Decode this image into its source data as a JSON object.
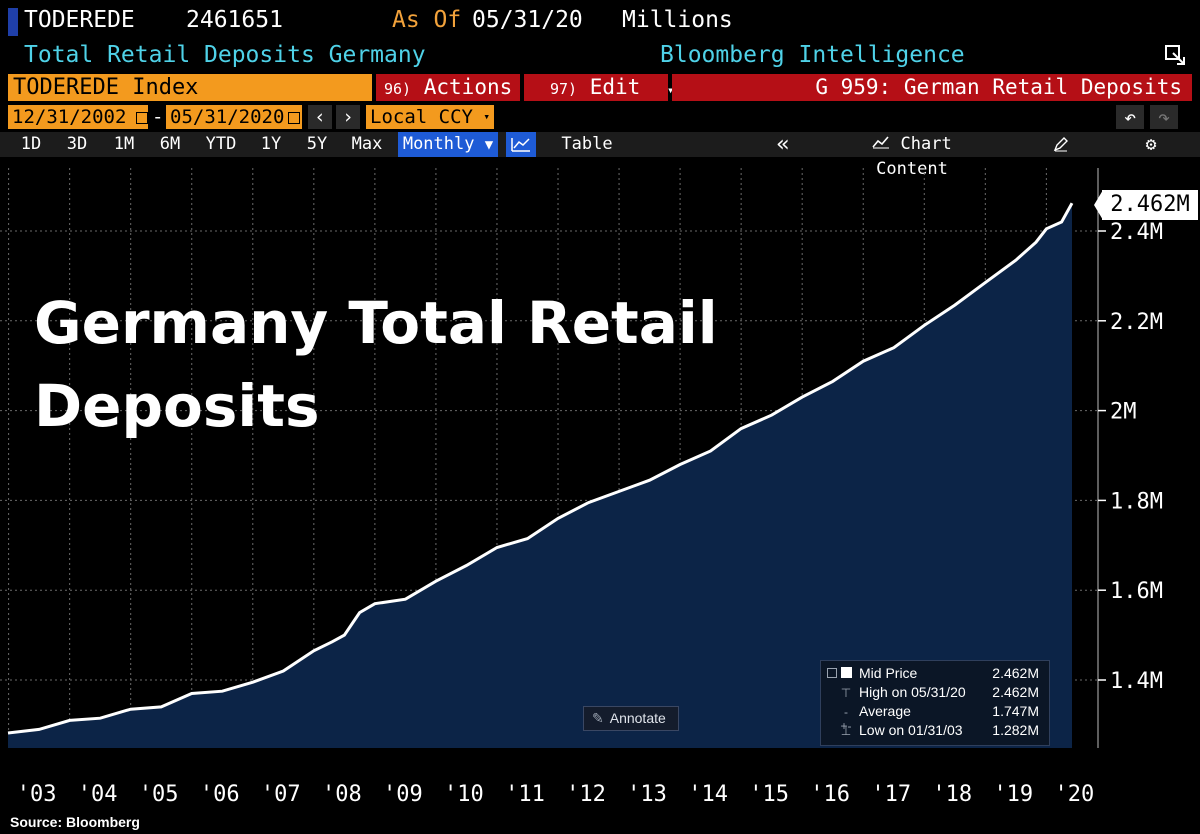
{
  "header": {
    "ticker": "TODEREDE",
    "last_value": "2461651",
    "as_of_label": "As Of",
    "as_of_date": "05/31/20",
    "units": "Millions",
    "description": "Total Retail Deposits Germany",
    "source_desk": "Bloomberg Intelligence"
  },
  "command_bar": {
    "security": "TODEREDE Index",
    "actions_num": "96)",
    "actions_label": "Actions",
    "edit_num": "97)",
    "edit_label": "Edit",
    "page_title": "G 959: German Retail Deposits"
  },
  "range_bar": {
    "start_date": "12/31/2002",
    "separator": "-",
    "end_date": "05/31/2020",
    "prev_icon": "‹",
    "next_icon": "›",
    "currency": "Local CCY",
    "undo_icon": "↶",
    "redo_icon": "↷"
  },
  "toolbar": {
    "periods": [
      "1D",
      "3D",
      "1M",
      "6M",
      "YTD",
      "1Y",
      "5Y",
      "Max"
    ],
    "frequency": "Monthly",
    "table_label": "Table",
    "collapse_icon": "«",
    "chart_content_label": "Chart Content"
  },
  "headline": {
    "line1": "Germany Total Retail",
    "line2": "Deposits"
  },
  "last_tag": "2.462M",
  "legend": {
    "mid_label": "Mid Price",
    "mid_value": "2.462M",
    "high_label": "High on 05/31/20",
    "high_value": "2.462M",
    "avg_label": "Average",
    "avg_value": "1.747M",
    "low_label": "Low on 01/31/03",
    "low_value": "1.282M"
  },
  "annotate_label": "Annotate",
  "source": "Source: Bloomberg",
  "colors": {
    "area_fill": "#0c2447",
    "line": "#ffffff",
    "accent_orange": "#f39a1e",
    "accent_red": "#b50f16",
    "text_cyan": "#4fd2e8"
  },
  "chart_data": {
    "type": "area",
    "units": "Millions",
    "ylim": [
      1.25,
      2.5
    ],
    "yticks": [
      1.4,
      1.6,
      1.8,
      2.0,
      2.2,
      2.4
    ],
    "ytick_labels": [
      "1.4M",
      "1.6M",
      "1.8M",
      "2M",
      "2.2M",
      "2.4M"
    ],
    "xticks": [
      2003,
      2004,
      2005,
      2006,
      2007,
      2008,
      2009,
      2010,
      2011,
      2012,
      2013,
      2014,
      2015,
      2016,
      2017,
      2018,
      2019,
      2020
    ],
    "xtick_labels": [
      "'03",
      "'04",
      "'05",
      "'06",
      "'07",
      "'08",
      "'09",
      "'10",
      "'11",
      "'12",
      "'13",
      "'14",
      "'15",
      "'16",
      "'17",
      "'18",
      "'19",
      "'20"
    ],
    "x": [
      2002.99,
      2003.5,
      2004.0,
      2004.5,
      2005.0,
      2005.5,
      2006.0,
      2006.5,
      2007.0,
      2007.5,
      2008.0,
      2008.3,
      2008.5,
      2008.75,
      2009.0,
      2009.5,
      2010.0,
      2010.5,
      2011.0,
      2011.5,
      2012.0,
      2012.5,
      2013.0,
      2013.5,
      2014.0,
      2014.5,
      2015.0,
      2015.5,
      2016.0,
      2016.5,
      2017.0,
      2017.5,
      2018.0,
      2018.5,
      2019.0,
      2019.5,
      2019.83,
      2020.0,
      2020.25,
      2020.42
    ],
    "y": [
      1.282,
      1.29,
      1.31,
      1.315,
      1.335,
      1.34,
      1.37,
      1.375,
      1.395,
      1.42,
      1.465,
      1.485,
      1.5,
      1.55,
      1.57,
      1.58,
      1.62,
      1.655,
      1.695,
      1.715,
      1.76,
      1.795,
      1.82,
      1.845,
      1.88,
      1.91,
      1.96,
      1.99,
      2.03,
      2.065,
      2.11,
      2.14,
      2.19,
      2.235,
      2.285,
      2.335,
      2.375,
      2.405,
      2.42,
      2.462
    ],
    "grid": true,
    "legend_position": "bottom-right"
  }
}
